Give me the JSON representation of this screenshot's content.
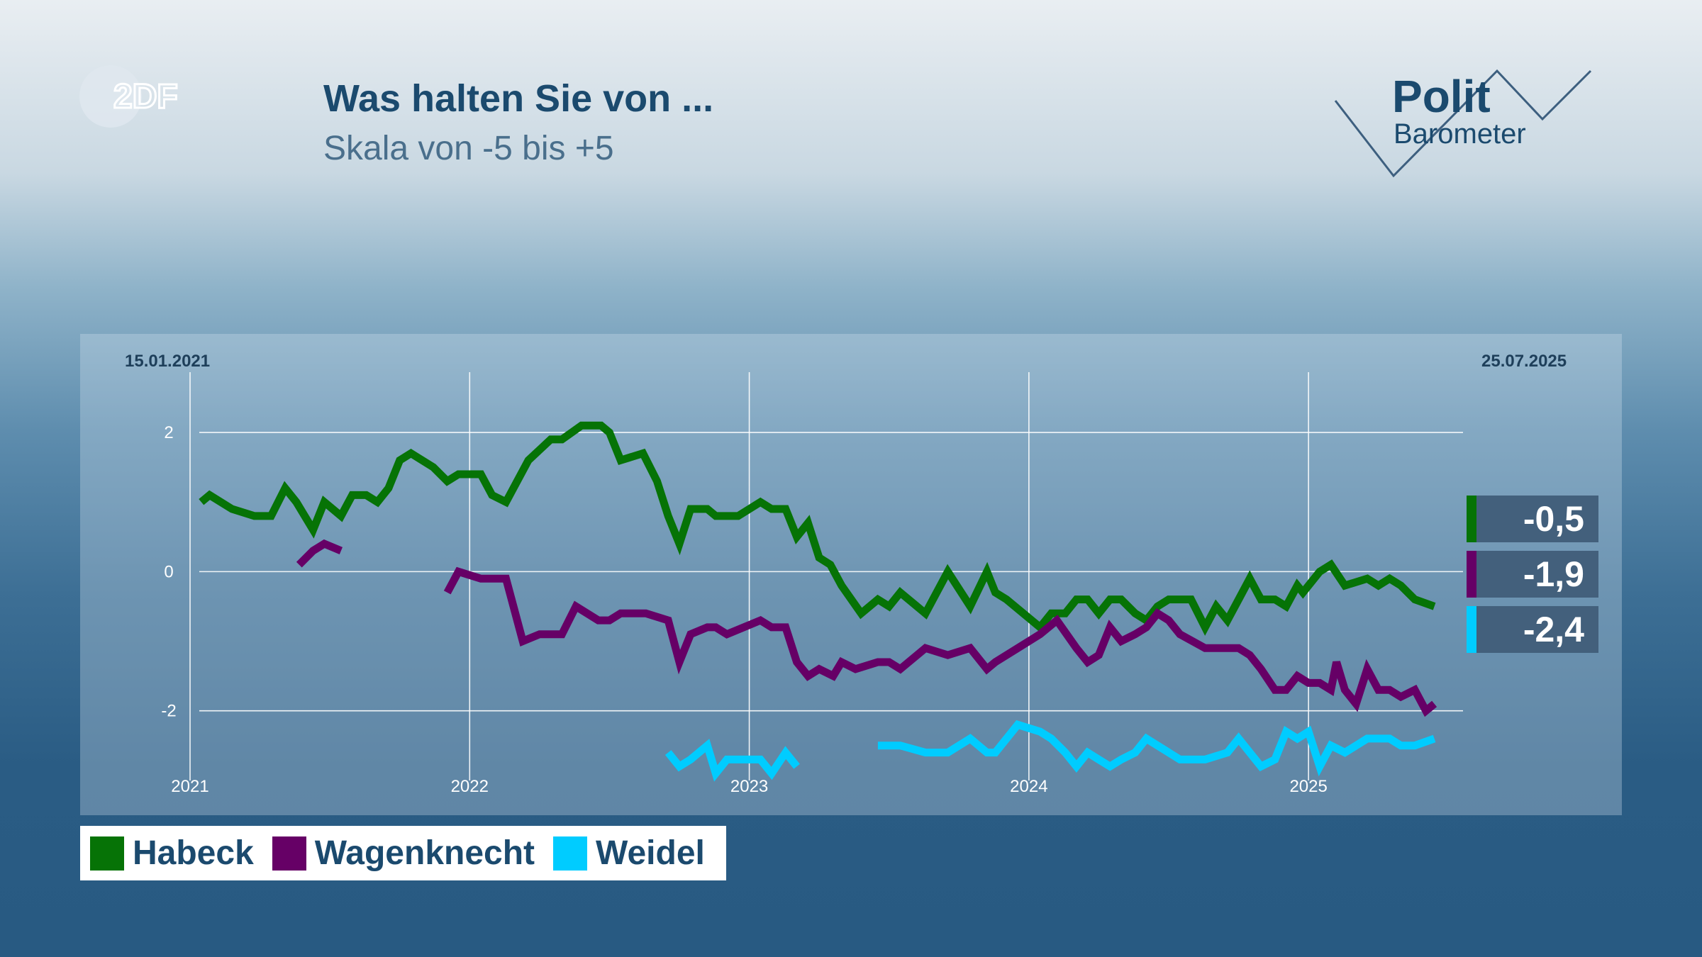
{
  "header": {
    "logo_text": "2DF",
    "title": "Was halten Sie von ...",
    "subtitle": "Skala von -5 bis +5",
    "brand_line1": "Polit",
    "brand_line2": "Barometer"
  },
  "chart_data": {
    "type": "line",
    "start_date_label": "15.01.2021",
    "end_date_label": "25.07.2025",
    "x_unit": "year (decimal)",
    "xlim": [
      2021.0,
      2025.55
    ],
    "ylim": [
      -2.9,
      2.5
    ],
    "yticks": [
      2,
      0,
      -2
    ],
    "ytick_labels": [
      "2",
      "0",
      "-2"
    ],
    "xticks": [
      2021,
      2022,
      2023,
      2024,
      2025
    ],
    "xtick_labels": [
      "2021",
      "2022",
      "2023",
      "2024",
      "2025"
    ],
    "grid": true,
    "legend_position": "bottom-left",
    "series": [
      {
        "name": "Habeck",
        "color": "#067306",
        "latest_label": "-0,5",
        "segments": [
          [
            [
              2021.04,
              1.0
            ],
            [
              2021.07,
              1.1
            ],
            [
              2021.15,
              0.9
            ],
            [
              2021.23,
              0.8
            ],
            [
              2021.29,
              0.8
            ],
            [
              2021.34,
              1.2
            ],
            [
              2021.38,
              1.0
            ],
            [
              2021.44,
              0.6
            ],
            [
              2021.48,
              1.0
            ],
            [
              2021.54,
              0.8
            ],
            [
              2021.58,
              1.1
            ],
            [
              2021.63,
              1.1
            ],
            [
              2021.67,
              1.0
            ],
            [
              2021.71,
              1.2
            ],
            [
              2021.75,
              1.6
            ],
            [
              2021.79,
              1.7
            ],
            [
              2021.87,
              1.5
            ],
            [
              2021.92,
              1.3
            ],
            [
              2021.96,
              1.4
            ],
            [
              2022.04,
              1.4
            ],
            [
              2022.08,
              1.1
            ],
            [
              2022.13,
              1.0
            ],
            [
              2022.21,
              1.6
            ],
            [
              2022.29,
              1.9
            ],
            [
              2022.33,
              1.9
            ],
            [
              2022.4,
              2.1
            ],
            [
              2022.47,
              2.1
            ],
            [
              2022.5,
              2.0
            ],
            [
              2022.54,
              1.6
            ],
            [
              2022.62,
              1.7
            ],
            [
              2022.67,
              1.3
            ],
            [
              2022.71,
              0.8
            ],
            [
              2022.75,
              0.4
            ],
            [
              2022.79,
              0.9
            ],
            [
              2022.85,
              0.9
            ],
            [
              2022.88,
              0.8
            ],
            [
              2022.96,
              0.8
            ],
            [
              2023.04,
              1.0
            ],
            [
              2023.08,
              0.9
            ],
            [
              2023.13,
              0.9
            ],
            [
              2023.17,
              0.5
            ],
            [
              2023.21,
              0.7
            ],
            [
              2023.25,
              0.2
            ],
            [
              2023.29,
              0.1
            ],
            [
              2023.33,
              -0.2
            ],
            [
              2023.4,
              -0.6
            ],
            [
              2023.46,
              -0.4
            ],
            [
              2023.5,
              -0.5
            ],
            [
              2023.54,
              -0.3
            ],
            [
              2023.63,
              -0.6
            ],
            [
              2023.71,
              0.0
            ],
            [
              2023.79,
              -0.5
            ],
            [
              2023.85,
              0.0
            ],
            [
              2023.88,
              -0.3
            ],
            [
              2023.92,
              -0.4
            ],
            [
              2024.04,
              -0.8
            ],
            [
              2024.08,
              -0.6
            ],
            [
              2024.13,
              -0.6
            ],
            [
              2024.17,
              -0.4
            ],
            [
              2024.21,
              -0.4
            ],
            [
              2024.25,
              -0.6
            ],
            [
              2024.29,
              -0.4
            ],
            [
              2024.33,
              -0.4
            ],
            [
              2024.38,
              -0.6
            ],
            [
              2024.42,
              -0.7
            ],
            [
              2024.46,
              -0.5
            ],
            [
              2024.5,
              -0.4
            ],
            [
              2024.58,
              -0.4
            ],
            [
              2024.63,
              -0.8
            ],
            [
              2024.67,
              -0.5
            ],
            [
              2024.71,
              -0.7
            ],
            [
              2024.75,
              -0.4
            ],
            [
              2024.79,
              -0.1
            ],
            [
              2024.83,
              -0.4
            ],
            [
              2024.88,
              -0.4
            ],
            [
              2024.92,
              -0.5
            ],
            [
              2024.96,
              -0.2
            ],
            [
              2024.98,
              -0.3
            ],
            [
              2025.04,
              0.0
            ],
            [
              2025.08,
              0.1
            ],
            [
              2025.13,
              -0.2
            ],
            [
              2025.21,
              -0.1
            ],
            [
              2025.25,
              -0.2
            ],
            [
              2025.29,
              -0.1
            ],
            [
              2025.33,
              -0.2
            ],
            [
              2025.38,
              -0.4
            ],
            [
              2025.45,
              -0.5
            ]
          ]
        ]
      },
      {
        "name": "Wagenknecht",
        "color": "#660066",
        "latest_label": "-1,9",
        "segments": [
          [
            [
              2021.39,
              0.1
            ],
            [
              2021.44,
              0.3
            ],
            [
              2021.48,
              0.4
            ],
            [
              2021.54,
              0.3
            ]
          ],
          [
            [
              2021.92,
              -0.3
            ],
            [
              2021.96,
              0.0
            ],
            [
              2022.04,
              -0.1
            ],
            [
              2022.13,
              -0.1
            ],
            [
              2022.19,
              -1.0
            ],
            [
              2022.25,
              -0.9
            ],
            [
              2022.33,
              -0.9
            ],
            [
              2022.38,
              -0.5
            ],
            [
              2022.46,
              -0.7
            ],
            [
              2022.5,
              -0.7
            ],
            [
              2022.54,
              -0.6
            ],
            [
              2022.63,
              -0.6
            ],
            [
              2022.71,
              -0.7
            ],
            [
              2022.75,
              -1.3
            ],
            [
              2022.79,
              -0.9
            ],
            [
              2022.85,
              -0.8
            ],
            [
              2022.88,
              -0.8
            ],
            [
              2022.92,
              -0.9
            ],
            [
              2023.04,
              -0.7
            ],
            [
              2023.08,
              -0.8
            ],
            [
              2023.13,
              -0.8
            ],
            [
              2023.17,
              -1.3
            ],
            [
              2023.21,
              -1.5
            ],
            [
              2023.25,
              -1.4
            ],
            [
              2023.3,
              -1.5
            ],
            [
              2023.33,
              -1.3
            ],
            [
              2023.38,
              -1.4
            ],
            [
              2023.46,
              -1.3
            ],
            [
              2023.5,
              -1.3
            ],
            [
              2023.54,
              -1.4
            ],
            [
              2023.63,
              -1.1
            ],
            [
              2023.71,
              -1.2
            ],
            [
              2023.79,
              -1.1
            ],
            [
              2023.85,
              -1.4
            ],
            [
              2023.88,
              -1.3
            ],
            [
              2023.96,
              -1.1
            ],
            [
              2024.04,
              -0.9
            ],
            [
              2024.1,
              -0.7
            ],
            [
              2024.17,
              -1.1
            ],
            [
              2024.21,
              -1.3
            ],
            [
              2024.25,
              -1.2
            ],
            [
              2024.29,
              -0.8
            ],
            [
              2024.33,
              -1.0
            ],
            [
              2024.38,
              -0.9
            ],
            [
              2024.42,
              -0.8
            ],
            [
              2024.46,
              -0.6
            ],
            [
              2024.5,
              -0.7
            ],
            [
              2024.54,
              -0.9
            ],
            [
              2024.63,
              -1.1
            ],
            [
              2024.71,
              -1.1
            ],
            [
              2024.75,
              -1.1
            ],
            [
              2024.79,
              -1.2
            ],
            [
              2024.83,
              -1.4
            ],
            [
              2024.88,
              -1.7
            ],
            [
              2024.92,
              -1.7
            ],
            [
              2024.96,
              -1.5
            ],
            [
              2025.0,
              -1.6
            ],
            [
              2025.04,
              -1.6
            ],
            [
              2025.08,
              -1.7
            ],
            [
              2025.1,
              -1.3
            ],
            [
              2025.13,
              -1.7
            ],
            [
              2025.17,
              -1.9
            ],
            [
              2025.21,
              -1.4
            ],
            [
              2025.25,
              -1.7
            ],
            [
              2025.29,
              -1.7
            ],
            [
              2025.33,
              -1.8
            ],
            [
              2025.38,
              -1.7
            ],
            [
              2025.42,
              -2.0
            ],
            [
              2025.45,
              -1.9
            ]
          ]
        ]
      },
      {
        "name": "Weidel",
        "color": "#00ccff",
        "latest_label": "-2,4",
        "segments": [
          [
            [
              2022.71,
              -2.6
            ],
            [
              2022.75,
              -2.8
            ],
            [
              2022.79,
              -2.7
            ],
            [
              2022.85,
              -2.5
            ],
            [
              2022.88,
              -2.9
            ],
            [
              2022.92,
              -2.7
            ],
            [
              2022.96,
              -2.7
            ],
            [
              2023.04,
              -2.7
            ],
            [
              2023.08,
              -2.9
            ],
            [
              2023.13,
              -2.6
            ],
            [
              2023.17,
              -2.8
            ]
          ],
          [
            [
              2023.46,
              -2.5
            ],
            [
              2023.5,
              -2.5
            ],
            [
              2023.54,
              -2.5
            ],
            [
              2023.63,
              -2.6
            ],
            [
              2023.71,
              -2.6
            ],
            [
              2023.79,
              -2.4
            ],
            [
              2023.85,
              -2.6
            ],
            [
              2023.88,
              -2.6
            ],
            [
              2023.96,
              -2.2
            ],
            [
              2024.04,
              -2.3
            ],
            [
              2024.08,
              -2.4
            ],
            [
              2024.13,
              -2.6
            ],
            [
              2024.17,
              -2.8
            ],
            [
              2024.21,
              -2.6
            ],
            [
              2024.25,
              -2.7
            ],
            [
              2024.29,
              -2.8
            ],
            [
              2024.33,
              -2.7
            ],
            [
              2024.38,
              -2.6
            ],
            [
              2024.42,
              -2.4
            ],
            [
              2024.46,
              -2.5
            ],
            [
              2024.54,
              -2.7
            ],
            [
              2024.63,
              -2.7
            ],
            [
              2024.71,
              -2.6
            ],
            [
              2024.75,
              -2.4
            ],
            [
              2024.79,
              -2.6
            ],
            [
              2024.83,
              -2.8
            ],
            [
              2024.88,
              -2.7
            ],
            [
              2024.92,
              -2.3
            ],
            [
              2024.96,
              -2.4
            ],
            [
              2025.0,
              -2.3
            ],
            [
              2025.04,
              -2.8
            ],
            [
              2025.08,
              -2.5
            ],
            [
              2025.13,
              -2.6
            ],
            [
              2025.21,
              -2.4
            ],
            [
              2025.25,
              -2.4
            ],
            [
              2025.29,
              -2.4
            ],
            [
              2025.33,
              -2.5
            ],
            [
              2025.38,
              -2.5
            ],
            [
              2025.45,
              -2.4
            ]
          ]
        ]
      }
    ]
  }
}
